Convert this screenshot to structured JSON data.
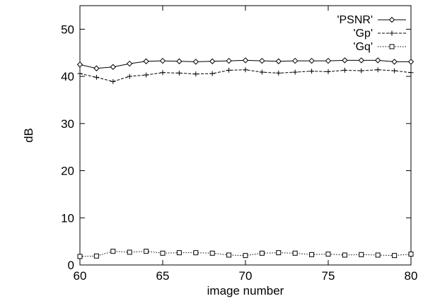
{
  "chart_data": {
    "type": "line",
    "title": "",
    "xlabel": "image number",
    "ylabel": "dB",
    "xlim": [
      60,
      80
    ],
    "ylim": [
      0,
      55
    ],
    "xticks": [
      60,
      65,
      70,
      75,
      80
    ],
    "yticks": [
      0,
      10,
      20,
      30,
      40,
      50
    ],
    "grid": false,
    "legend_position": "top-right",
    "x": [
      60,
      61,
      62,
      63,
      64,
      65,
      66,
      67,
      68,
      69,
      70,
      71,
      72,
      73,
      74,
      75,
      76,
      77,
      78,
      79,
      80
    ],
    "series": [
      {
        "name": "'PSNR'",
        "marker": "diamond",
        "dash": "solid",
        "values": [
          42.5,
          41.7,
          42.0,
          42.7,
          43.2,
          43.3,
          43.2,
          43.1,
          43.2,
          43.3,
          43.4,
          43.3,
          43.2,
          43.3,
          43.3,
          43.3,
          43.4,
          43.4,
          43.4,
          43.1,
          43.1
        ]
      },
      {
        "name": "'Gp'",
        "marker": "plus",
        "dash": "dashed",
        "values": [
          40.6,
          39.8,
          38.9,
          40.0,
          40.3,
          40.8,
          40.7,
          40.5,
          40.6,
          41.3,
          41.4,
          40.9,
          40.7,
          40.9,
          41.1,
          41.0,
          41.3,
          41.2,
          41.4,
          41.2,
          40.8
        ]
      },
      {
        "name": "'Gq'",
        "marker": "square",
        "dash": "dotted",
        "values": [
          1.8,
          1.9,
          2.9,
          2.7,
          2.9,
          2.5,
          2.6,
          2.6,
          2.5,
          2.1,
          2.0,
          2.5,
          2.6,
          2.5,
          2.2,
          2.3,
          2.1,
          2.2,
          2.1,
          2.0,
          2.3
        ]
      }
    ]
  }
}
